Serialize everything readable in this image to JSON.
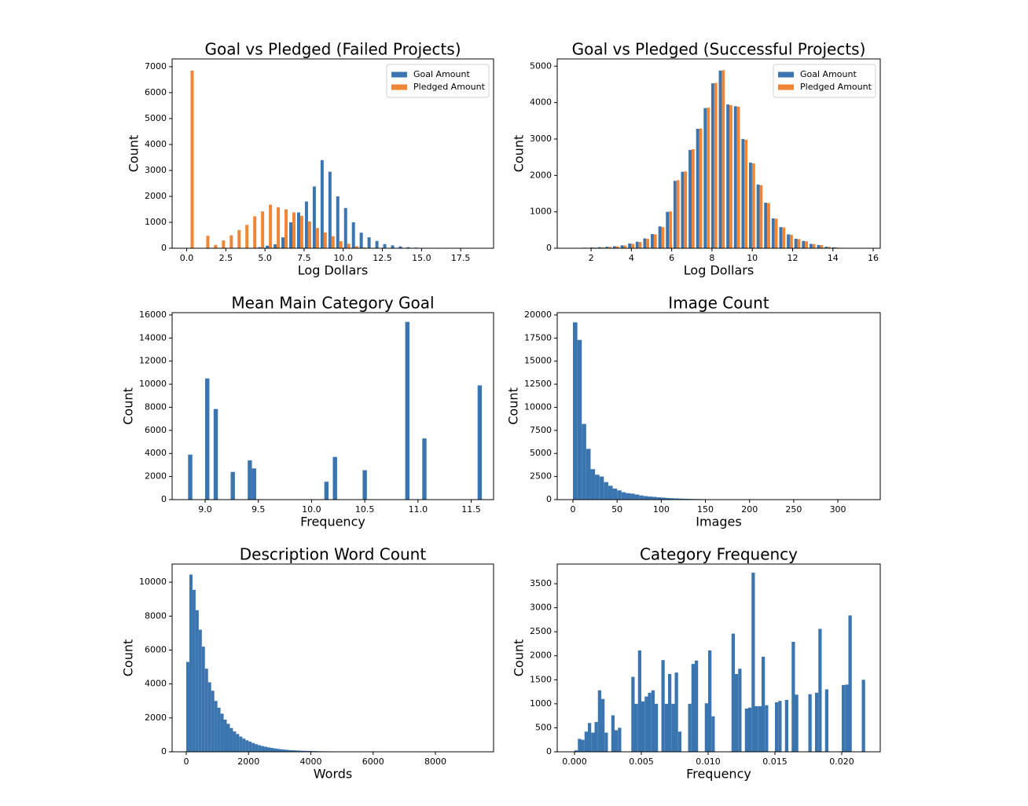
{
  "chart_data": [
    {
      "type": "histogram",
      "title": "Goal vs Pledged (Failed Projects)",
      "xlabel": "Log Dollars",
      "ylabel": "Count",
      "legend": "upper right",
      "xlim": [
        -0.93,
        19.6
      ],
      "ylim": [
        0,
        7300
      ],
      "xticks": [
        {
          "value": 0,
          "label": "0.0"
        },
        2.5,
        {
          "value": 5,
          "label": "5.0"
        },
        7.5,
        {
          "value": 10,
          "label": "10.0"
        },
        12.5,
        {
          "value": 15,
          "label": "15.0"
        },
        17.5
      ],
      "yticks": [
        0,
        1000,
        2000,
        3000,
        4000,
        5000,
        6000,
        7000
      ],
      "bins": [
        0,
        0.5,
        1,
        1.5,
        2,
        2.5,
        3,
        3.5,
        4,
        4.5,
        5,
        5.5,
        6,
        6.5,
        7,
        7.5,
        8,
        8.5,
        9,
        9.5,
        10,
        10.5,
        11,
        11.5,
        12,
        12.5,
        13,
        13.5,
        14,
        14.5,
        15,
        15.5,
        16,
        16.5,
        17,
        17.5,
        18,
        18.5,
        19
      ],
      "series": [
        {
          "name": "Goal Amount",
          "color": "#3a75b0",
          "values": [
            0,
            0,
            0,
            0,
            0,
            0,
            0,
            5,
            10,
            40,
            100,
            150,
            420,
            1000,
            1380,
            1800,
            2380,
            3400,
            2950,
            2000,
            1550,
            1000,
            600,
            420,
            280,
            160,
            110,
            70,
            40,
            25,
            15,
            10,
            5,
            3,
            2,
            1,
            1,
            1
          ]
        },
        {
          "name": "Pledged Amount",
          "color": "#ef8536",
          "values": [
            6850,
            0,
            480,
            130,
            300,
            500,
            700,
            900,
            1230,
            1420,
            1680,
            1580,
            1500,
            1380,
            1250,
            1030,
            780,
            610,
            460,
            270,
            170,
            80,
            30,
            10,
            0,
            0,
            0,
            0,
            0,
            0,
            0,
            0,
            0,
            0,
            0,
            0,
            0,
            0
          ]
        }
      ]
    },
    {
      "type": "histogram",
      "title": "Goal vs Pledged (Successful Projects)",
      "xlabel": "Log Dollars",
      "ylabel": "Count",
      "legend": "upper right",
      "xlim": [
        0.32,
        16.35
      ],
      "ylim": [
        0,
        5200
      ],
      "xticks": [
        2,
        4,
        6,
        8,
        10,
        12,
        14,
        16
      ],
      "yticks": [
        0,
        1000,
        2000,
        3000,
        4000,
        5000
      ],
      "bins": [
        0.8,
        1.175,
        1.55,
        1.925,
        2.3,
        2.675,
        3.05,
        3.425,
        3.8,
        4.175,
        4.55,
        4.925,
        5.3,
        5.675,
        6.05,
        6.425,
        6.8,
        7.175,
        7.55,
        7.925,
        8.3,
        8.675,
        9.05,
        9.425,
        9.8,
        10.175,
        10.55,
        10.925,
        11.3,
        11.675,
        12.05,
        12.425,
        12.8,
        13.175,
        13.55,
        13.925,
        14.3,
        14.675,
        15.05,
        15.425,
        15.8
      ],
      "series": [
        {
          "name": "Goal Amount",
          "color": "#3a75b0",
          "values": [
            5,
            10,
            15,
            20,
            30,
            40,
            55,
            80,
            130,
            180,
            270,
            390,
            600,
            1000,
            1850,
            2100,
            2700,
            3280,
            3850,
            4530,
            4880,
            3950,
            3900,
            3000,
            2350,
            1750,
            1250,
            820,
            580,
            380,
            260,
            200,
            120,
            90,
            40,
            25,
            10,
            5,
            3,
            2
          ]
        },
        {
          "name": "Pledged Amount",
          "color": "#ef8536",
          "values": [
            4,
            8,
            12,
            18,
            25,
            35,
            50,
            75,
            120,
            170,
            260,
            380,
            580,
            1010,
            1870,
            2110,
            2720,
            3290,
            3860,
            4540,
            4890,
            3930,
            3890,
            2980,
            2330,
            1730,
            1240,
            810,
            570,
            370,
            250,
            190,
            115,
            85,
            38,
            22,
            9,
            4,
            2,
            1
          ]
        }
      ]
    },
    {
      "type": "histogram",
      "title": "Mean Main Category Goal",
      "xlabel": "Frequency",
      "ylabel": "Count",
      "color": "#3a75b0",
      "xlim": [
        8.69,
        11.71
      ],
      "ylim": [
        0,
        16200
      ],
      "xticks": [
        {
          "value": 9,
          "label": "9.0"
        },
        9.5,
        {
          "value": 10,
          "label": "10.0"
        },
        10.5,
        {
          "value": 11,
          "label": "11.0"
        },
        11.5
      ],
      "yticks": [
        0,
        2000,
        4000,
        6000,
        8000,
        10000,
        12000,
        14000,
        16000
      ],
      "bins": [
        8.8,
        8.84,
        8.88,
        8.92,
        8.96,
        9,
        9.04,
        9.08,
        9.12,
        9.16,
        9.2,
        9.24,
        9.28,
        9.32,
        9.36,
        9.4,
        9.44,
        9.48,
        9.52,
        9.56,
        9.6,
        9.64,
        9.68,
        9.72,
        9.76,
        9.8,
        9.84,
        9.88,
        9.92,
        9.96,
        10,
        10.04,
        10.08,
        10.12,
        10.16,
        10.2,
        10.24,
        10.28,
        10.32,
        10.36,
        10.4,
        10.44,
        10.48,
        10.52,
        10.56,
        10.6,
        10.64,
        10.68,
        10.72,
        10.76,
        10.8,
        10.84,
        10.88,
        10.92,
        10.96,
        11,
        11.04,
        11.08,
        11.12,
        11.16,
        11.2,
        11.24,
        11.28,
        11.32,
        11.36,
        11.4,
        11.44,
        11.48,
        11.52,
        11.56,
        11.6
      ],
      "values": [
        0,
        3900,
        0,
        0,
        0,
        10500,
        0,
        7850,
        0,
        0,
        0,
        2400,
        0,
        0,
        0,
        3400,
        2700,
        0,
        0,
        0,
        0,
        0,
        0,
        0,
        0,
        0,
        0,
        0,
        0,
        0,
        0,
        0,
        0,
        1550,
        0,
        3700,
        0,
        0,
        0,
        0,
        0,
        0,
        2550,
        0,
        0,
        0,
        0,
        0,
        0,
        0,
        0,
        0,
        15400,
        0,
        0,
        0,
        5300,
        0,
        0,
        0,
        0,
        0,
        0,
        0,
        0,
        0,
        0,
        0,
        0,
        9900
      ]
    },
    {
      "type": "histogram",
      "title": "Image Count",
      "xlabel": "Images",
      "ylabel": "Count",
      "color": "#3a75b0",
      "xlim": [
        -17.8,
        348
      ],
      "ylim": [
        0,
        20250
      ],
      "xticks": [
        0,
        50,
        100,
        150,
        200,
        250,
        300
      ],
      "yticks": [
        0,
        2500,
        5000,
        7500,
        10000,
        12500,
        15000,
        17500,
        20000
      ],
      "bins": [
        0,
        5,
        10,
        15,
        20,
        25,
        30,
        35,
        40,
        45,
        50,
        55,
        60,
        65,
        70,
        75,
        80,
        85,
        90,
        95,
        100,
        105,
        110,
        115,
        120,
        125,
        130,
        135,
        140,
        145,
        150,
        155,
        160,
        165,
        170,
        175,
        180,
        185,
        190,
        195,
        200,
        205,
        210,
        215,
        220,
        225,
        230,
        235,
        240,
        245,
        250,
        255,
        260,
        265,
        270,
        275,
        280,
        285,
        290,
        295,
        300,
        305,
        310,
        315,
        320,
        325,
        330,
        335
      ],
      "values": [
        19200,
        17300,
        8200,
        5500,
        3300,
        2700,
        2500,
        1900,
        1500,
        1200,
        1000,
        800,
        700,
        650,
        550,
        450,
        380,
        330,
        300,
        250,
        220,
        180,
        150,
        130,
        110,
        95,
        80,
        70,
        60,
        50,
        45,
        40,
        35,
        30,
        25,
        22,
        20,
        18,
        15,
        12,
        10,
        9,
        8,
        7,
        6,
        5,
        5,
        4,
        4,
        3,
        3,
        3,
        2,
        2,
        2,
        2,
        1,
        1,
        1,
        1,
        1,
        1,
        1,
        1,
        1,
        1,
        2
      ]
    },
    {
      "type": "histogram",
      "title": "Description Word Count",
      "xlabel": "Words",
      "ylabel": "Count",
      "color": "#3a75b0",
      "xlim": [
        -454,
        9868
      ],
      "ylim": [
        0,
        11070
      ],
      "xticks": [
        0,
        2000,
        4000,
        6000,
        8000
      ],
      "yticks": [
        0,
        2000,
        4000,
        6000,
        8000,
        10000
      ],
      "bins": [
        0,
        100,
        200,
        300,
        400,
        500,
        600,
        700,
        800,
        900,
        1000,
        1100,
        1200,
        1300,
        1400,
        1500,
        1600,
        1700,
        1800,
        1900,
        2000,
        2100,
        2200,
        2300,
        2400,
        2500,
        2600,
        2700,
        2800,
        2900,
        3000,
        3100,
        3200,
        3300,
        3400,
        3500,
        3600,
        3700,
        3800,
        3900,
        4000,
        4100,
        4200,
        4300,
        4400,
        4500,
        4600,
        4700,
        4800,
        4900,
        5000,
        5100,
        5200,
        5300,
        5400,
        5500,
        5600,
        5700,
        5800,
        5900,
        6000,
        6100,
        6200,
        6300,
        6400,
        6500,
        6600,
        6700,
        6800,
        6900,
        7000,
        7100,
        7200,
        7300,
        7400,
        7500,
        7600,
        7700,
        7800,
        7900,
        8000,
        8100,
        8200,
        8300,
        8400,
        8500,
        8600,
        8700,
        8800,
        8900,
        9000,
        9100,
        9200,
        9300,
        9400
      ],
      "values": [
        5300,
        10450,
        9550,
        8350,
        7200,
        6200,
        4900,
        4100,
        3600,
        3000,
        2600,
        2250,
        1900,
        1650,
        1400,
        1200,
        1050,
        900,
        780,
        680,
        600,
        520,
        450,
        390,
        340,
        300,
        260,
        230,
        200,
        175,
        150,
        130,
        115,
        100,
        90,
        80,
        70,
        60,
        55,
        50,
        45,
        40,
        35,
        30,
        28,
        25,
        22,
        20,
        18,
        16,
        15,
        13,
        12,
        11,
        10,
        9,
        8,
        7,
        6,
        6,
        5,
        5,
        4,
        4,
        4,
        3,
        3,
        3,
        2,
        2,
        2,
        2,
        2,
        2,
        1,
        1,
        1,
        1,
        1,
        1,
        1,
        1,
        1,
        1,
        1,
        1,
        1,
        1,
        1,
        1,
        1,
        1,
        1,
        1
      ]
    },
    {
      "type": "histogram",
      "title": "Category Frequency",
      "xlabel": "Frequency",
      "ylabel": "Count",
      "color": "#3a75b0",
      "xlim": [
        -0.001294,
        0.022882
      ],
      "ylim": [
        0,
        3910
      ],
      "xticks": [
        {
          "value": 0,
          "label": "0.000"
        },
        0.005,
        {
          "value": 0.01,
          "label": "0.010"
        },
        0.015,
        {
          "value": 0.02,
          "label": "0.020"
        }
      ],
      "yticks": [
        0,
        500,
        1000,
        1500,
        2000,
        2500,
        3000,
        3500
      ],
      "bins": [
        0,
        0.00025,
        0.0005,
        0.00075,
        0.001,
        0.00125,
        0.0015,
        0.00175,
        0.002,
        0.00225,
        0.0025,
        0.00275,
        0.003,
        0.00325,
        0.0035,
        0.00375,
        0.004,
        0.00425,
        0.0045,
        0.00475,
        0.005,
        0.00525,
        0.0055,
        0.00575,
        0.006,
        0.00625,
        0.0065,
        0.00675,
        0.007,
        0.00725,
        0.0075,
        0.00775,
        0.008,
        0.00825,
        0.0085,
        0.00875,
        0.009,
        0.00925,
        0.0095,
        0.00975,
        0.01,
        0.01025,
        0.0105,
        0.01075,
        0.011,
        0.01125,
        0.0115,
        0.01175,
        0.012,
        0.01225,
        0.0125,
        0.01275,
        0.013,
        0.01325,
        0.0135,
        0.01375,
        0.014,
        0.01425,
        0.0145,
        0.01475,
        0.015,
        0.01525,
        0.0155,
        0.01575,
        0.016,
        0.01625,
        0.0165,
        0.01675,
        0.017,
        0.01725,
        0.0175,
        0.01775,
        0.018,
        0.01825,
        0.0185,
        0.01875,
        0.019,
        0.01925,
        0.0195,
        0.01975,
        0.02,
        0.02025,
        0.0205,
        0.02075,
        0.021,
        0.02125,
        0.0215,
        0.02175,
        0.022
      ],
      "values": [
        30,
        270,
        250,
        420,
        600,
        400,
        620,
        1280,
        1100,
        400,
        0,
        760,
        450,
        500,
        0,
        0,
        0,
        1560,
        1000,
        2110,
        1050,
        1150,
        1230,
        1280,
        1000,
        0,
        1910,
        1000,
        1620,
        1000,
        1650,
        420,
        0,
        0,
        1000,
        1830,
        1900,
        0,
        0,
        1010,
        2110,
        740,
        0,
        0,
        0,
        0,
        0,
        2460,
        1620,
        1730,
        0,
        900,
        920,
        3730,
        950,
        950,
        1980,
        970,
        0,
        0,
        1030,
        1060,
        0,
        1080,
        0,
        2290,
        1190,
        0,
        0,
        0,
        1200,
        0,
        1230,
        2560,
        0,
        1300,
        0,
        0,
        0,
        0,
        1390,
        1400,
        2840,
        0,
        0,
        0,
        1500,
        0
      ]
    }
  ]
}
